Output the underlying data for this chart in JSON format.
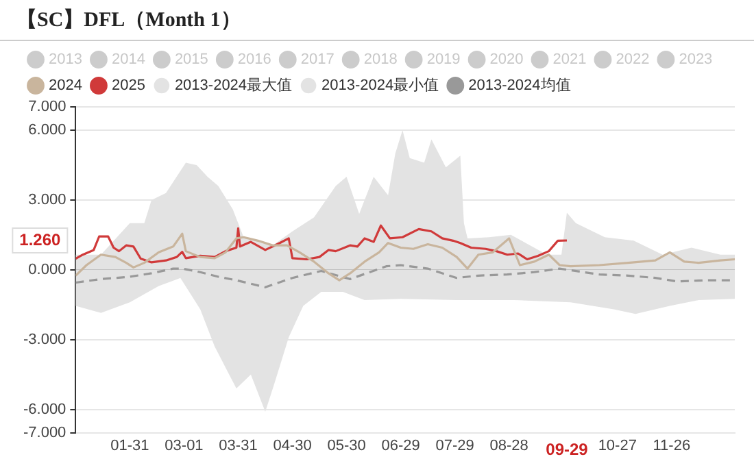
{
  "chart_data": {
    "type": "line",
    "title": "【SC】DFL（Month 1）",
    "xlim": [
      "--01-01",
      "--12-31"
    ],
    "xticks": [
      {
        "value": "--01-31",
        "label": "01-31"
      },
      {
        "value": "--03-01",
        "label": "03-01"
      },
      {
        "value": "--03-31",
        "label": "03-31"
      },
      {
        "value": "--04-30",
        "label": "04-30"
      },
      {
        "value": "--05-30",
        "label": "05-30"
      },
      {
        "value": "--06-29",
        "label": "06-29"
      },
      {
        "value": "--07-29",
        "label": "07-29"
      },
      {
        "value": "--08-28",
        "label": "08-28"
      },
      {
        "value": "--10-27",
        "label": "10-27"
      },
      {
        "value": "--11-26",
        "label": "11-26"
      }
    ],
    "ylim": [
      -7,
      7
    ],
    "yticks": [
      {
        "value": -7,
        "label": "-7.000"
      },
      {
        "value": -6,
        "label": "-6.000"
      },
      {
        "value": -3,
        "label": "-3.000"
      },
      {
        "value": 0,
        "label": "0.000"
      },
      {
        "value": 3,
        "label": "3.000"
      },
      {
        "value": 6,
        "label": "6.000"
      },
      {
        "value": 7,
        "label": "7.000"
      }
    ],
    "grid": "y",
    "legend": "top left",
    "marker": "none",
    "annotations": [
      "1.260",
      "09-29"
    ],
    "series": [
      {
        "name": "2013",
        "color": "#cccccc"
      },
      {
        "name": "2014",
        "color": "#cccccc"
      },
      {
        "name": "2015",
        "color": "#cccccc"
      },
      {
        "name": "2016",
        "color": "#cccccc"
      },
      {
        "name": "2017",
        "color": "#cccccc"
      },
      {
        "name": "2018",
        "color": "#cccccc"
      },
      {
        "name": "2019",
        "color": "#cccccc"
      },
      {
        "name": "2020",
        "color": "#cccccc"
      },
      {
        "name": "2021",
        "color": "#cccccc"
      },
      {
        "name": "2022",
        "color": "#cccccc"
      },
      {
        "name": "2023",
        "color": "#cccccc"
      },
      {
        "name": "2024",
        "color": "#c9b59d",
        "x": [
          "--01-01",
          "--01-07",
          "--01-15",
          "--01-23",
          "--01-29",
          "--02-02",
          "--02-08",
          "--02-16",
          "--02-24",
          "--02-29",
          "--03-02",
          "--03-10",
          "--03-18",
          "--03-24",
          "--03-30",
          "--04-03",
          "--04-11",
          "--04-19",
          "--04-27",
          "--05-04",
          "--05-12",
          "--05-20",
          "--05-26",
          "--06-01",
          "--06-09",
          "--06-17",
          "--06-22",
          "--06-29",
          "--07-06",
          "--07-14",
          "--07-22",
          "--07-30",
          "--08-05",
          "--08-11",
          "--08-19",
          "--08-28",
          "--09-03",
          "--09-11",
          "--09-19",
          "--09-25",
          "--10-01",
          "--10-17",
          "--11-02",
          "--11-17",
          "--11-25",
          "--12-03",
          "--12-11",
          "--12-23",
          "--12-31"
        ],
        "values": [
          -0.25,
          0.2,
          0.65,
          0.55,
          0.3,
          0.1,
          0.3,
          0.75,
          1.0,
          1.55,
          0.8,
          0.55,
          0.5,
          0.75,
          1.35,
          1.4,
          1.25,
          1.05,
          1.05,
          0.75,
          0.35,
          -0.15,
          -0.45,
          -0.15,
          0.35,
          0.75,
          1.15,
          0.95,
          0.9,
          1.1,
          0.95,
          0.55,
          0.05,
          0.65,
          0.75,
          1.35,
          0.2,
          0.35,
          0.65,
          0.2,
          0.15,
          0.2,
          0.3,
          0.4,
          0.75,
          0.35,
          0.3,
          0.4,
          0.45
        ]
      },
      {
        "name": "2025",
        "color": "#d03a3a",
        "x": [
          "--01-01",
          "--01-05",
          "--01-11",
          "--01-14",
          "--01-19",
          "--01-22",
          "--01-25",
          "--01-29",
          "--02-02",
          "--02-06",
          "--02-12",
          "--02-20",
          "--02-26",
          "--02-29",
          "--03-02",
          "--03-10",
          "--03-18",
          "--03-24",
          "--03-30",
          "--03-31",
          "--04-01",
          "--04-07",
          "--04-15",
          "--04-23",
          "--04-28",
          "--04-30",
          "--05-08",
          "--05-15",
          "--05-20",
          "--05-24",
          "--06-01",
          "--06-05",
          "--06-09",
          "--06-14",
          "--06-18",
          "--06-23",
          "--06-30",
          "--07-09",
          "--07-16",
          "--07-22",
          "--07-28",
          "--08-01",
          "--08-07",
          "--08-15",
          "--08-21",
          "--08-27",
          "--09-02",
          "--09-07",
          "--09-13",
          "--09-19",
          "--09-24",
          "--09-29"
        ],
        "values": [
          0.48,
          0.65,
          0.85,
          1.43,
          1.43,
          0.95,
          0.8,
          1.05,
          1.0,
          0.48,
          0.32,
          0.4,
          0.55,
          0.77,
          0.5,
          0.6,
          0.55,
          0.8,
          0.95,
          1.78,
          1.0,
          1.2,
          0.85,
          1.15,
          1.35,
          0.5,
          0.45,
          0.55,
          0.85,
          0.8,
          1.05,
          1.0,
          1.35,
          1.2,
          1.9,
          1.35,
          1.4,
          1.75,
          1.65,
          1.35,
          1.25,
          1.15,
          0.95,
          0.9,
          0.8,
          0.65,
          0.7,
          0.45,
          0.6,
          0.8,
          1.25,
          1.26
        ]
      },
      {
        "name": "2013-2024最大值",
        "type": "area",
        "color": "#e3e3e3",
        "x": [
          "--01-01",
          "--01-15",
          "--01-31",
          "--02-08",
          "--02-12",
          "--02-20",
          "--03-02",
          "--03-08",
          "--03-14",
          "--03-20",
          "--03-28",
          "--04-03",
          "--04-19",
          "--04-30",
          "--05-12",
          "--05-24",
          "--05-30",
          "--06-06",
          "--06-14",
          "--06-22",
          "--06-26",
          "--06-30",
          "--07-04",
          "--07-12",
          "--07-16",
          "--07-24",
          "--08-01",
          "--08-03",
          "--08-05",
          "--08-17",
          "--08-29",
          "--09-18",
          "--09-26",
          "--09-29",
          "--10-04",
          "--10-20",
          "--11-05",
          "--11-21",
          "--12-07",
          "--12-23",
          "--12-31"
        ],
        "values": [
          0.65,
          0.65,
          2.0,
          2.0,
          3.0,
          3.3,
          4.6,
          4.5,
          4.0,
          3.6,
          2.6,
          1.4,
          1.05,
          1.65,
          2.25,
          3.6,
          4.0,
          2.4,
          4.0,
          3.2,
          5.0,
          6.0,
          4.8,
          4.6,
          5.6,
          4.4,
          4.9,
          2.0,
          1.35,
          1.4,
          1.5,
          0.65,
          0.65,
          2.45,
          2.0,
          1.4,
          1.25,
          0.65,
          0.95,
          0.65,
          0.65
        ]
      },
      {
        "name": "2013-2024最小值",
        "type": "area",
        "color": "#e3e3e3",
        "x": [
          "--01-01",
          "--01-15",
          "--01-31",
          "--02-16",
          "--02-28",
          "--03-10",
          "--03-18",
          "--03-26",
          "--03-30",
          "--04-07",
          "--04-15",
          "--04-20",
          "--04-28",
          "--05-06",
          "--05-16",
          "--05-28",
          "--06-09",
          "--06-29",
          "--07-30",
          "--08-31",
          "--10-01",
          "--10-25",
          "--11-06",
          "--11-25",
          "--12-11",
          "--12-31"
        ],
        "values": [
          -1.55,
          -1.85,
          -1.4,
          -0.7,
          -0.35,
          -1.7,
          -3.3,
          -4.5,
          -5.1,
          -4.5,
          -6.1,
          -4.9,
          -2.9,
          -1.55,
          -0.95,
          -0.95,
          -1.3,
          -1.25,
          -1.3,
          -1.3,
          -1.4,
          -1.7,
          -1.9,
          -1.55,
          -1.3,
          -1.25
        ]
      },
      {
        "name": "2013-2024均值",
        "color": "#999999",
        "line_style": "dashed",
        "x": [
          "--01-01",
          "--01-15",
          "--01-31",
          "--02-12",
          "--02-24",
          "--02-29",
          "--03-10",
          "--03-20",
          "--03-30",
          "--04-15",
          "--04-30",
          "--05-16",
          "--06-01",
          "--06-21",
          "--06-29",
          "--07-14",
          "--07-30",
          "--08-11",
          "--08-27",
          "--09-11",
          "--09-25",
          "--10-17",
          "--11-02",
          "--11-17",
          "--11-29",
          "--12-15",
          "--12-31"
        ],
        "values": [
          -0.55,
          -0.4,
          -0.3,
          -0.15,
          0.05,
          0.05,
          -0.1,
          -0.3,
          -0.45,
          -0.75,
          -0.35,
          -0.05,
          -0.4,
          0.15,
          0.2,
          0.05,
          -0.35,
          -0.25,
          -0.2,
          -0.1,
          0.05,
          -0.2,
          -0.25,
          -0.35,
          -0.5,
          -0.45,
          -0.45
        ]
      }
    ]
  }
}
